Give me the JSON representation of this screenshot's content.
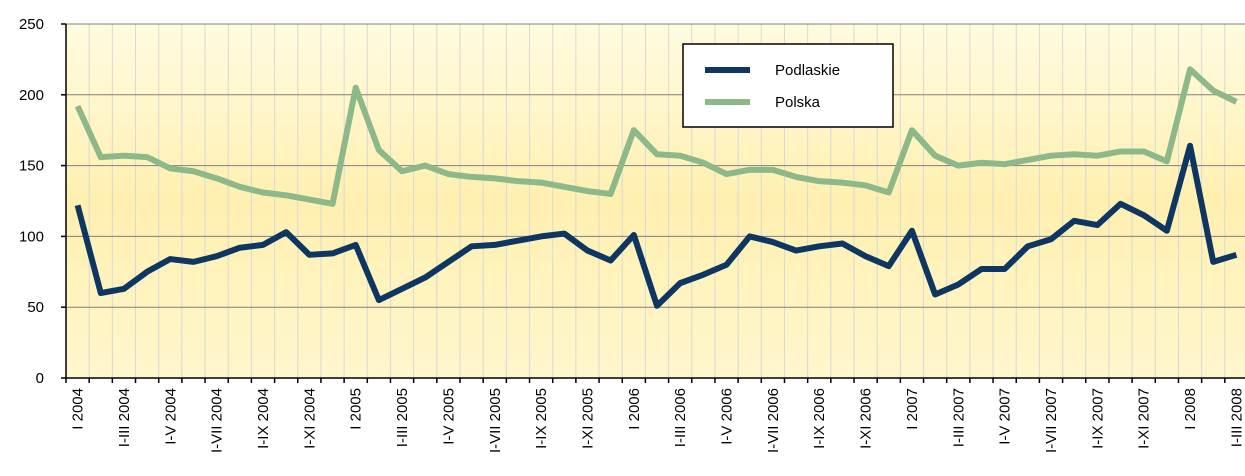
{
  "chart_data": {
    "type": "line",
    "categories": [
      "I 2004",
      null,
      "I-III 2004",
      null,
      "I-V 2004",
      null,
      "I-VII 2004",
      null,
      "I-IX 2004",
      null,
      "I-XI 2004",
      null,
      "I 2005",
      null,
      "I-III 2005",
      null,
      "I-V 2005",
      null,
      "I-VII 2005",
      null,
      "I-IX 2005",
      null,
      "I-XI 2005",
      null,
      "I 2006",
      null,
      "I-III 2006",
      null,
      "I-V 2006",
      null,
      "I-VII 2006",
      null,
      "I-IX 2006",
      null,
      "I-XI 2006",
      null,
      "I 2007",
      null,
      "I-III 2007",
      null,
      "I-V 2007",
      null,
      "I-VII 2007",
      null,
      "I-IX 2007",
      null,
      "I-XI 2007",
      null,
      "I 2008",
      null,
      "I-III 2008"
    ],
    "series": [
      {
        "name": "Podlaskie",
        "color": "#0d3663",
        "values": [
          122,
          60,
          63,
          75,
          84,
          82,
          86,
          92,
          94,
          103,
          87,
          88,
          94,
          55,
          63,
          71,
          82,
          93,
          94,
          97,
          100,
          102,
          90,
          83,
          101,
          51,
          67,
          73,
          80,
          100,
          96,
          90,
          93,
          95,
          86,
          79,
          104,
          59,
          66,
          77,
          77,
          93,
          98,
          111,
          108,
          123,
          115,
          104,
          164,
          82,
          87
        ]
      },
      {
        "name": "Polska",
        "color": "#8db88a",
        "values": [
          192,
          156,
          157,
          156,
          148,
          146,
          141,
          135,
          131,
          129,
          126,
          123,
          205,
          161,
          146,
          150,
          144,
          142,
          141,
          139,
          138,
          135,
          132,
          130,
          175,
          158,
          157,
          152,
          144,
          147,
          147,
          142,
          139,
          138,
          136,
          131,
          175,
          157,
          150,
          152,
          151,
          154,
          157,
          158,
          157,
          160,
          160,
          153,
          218,
          203,
          195
        ]
      }
    ],
    "ylim": [
      0,
      250
    ],
    "yticks": [
      0,
      50,
      100,
      150,
      200,
      250
    ],
    "grid": true,
    "legend": "top-right"
  }
}
